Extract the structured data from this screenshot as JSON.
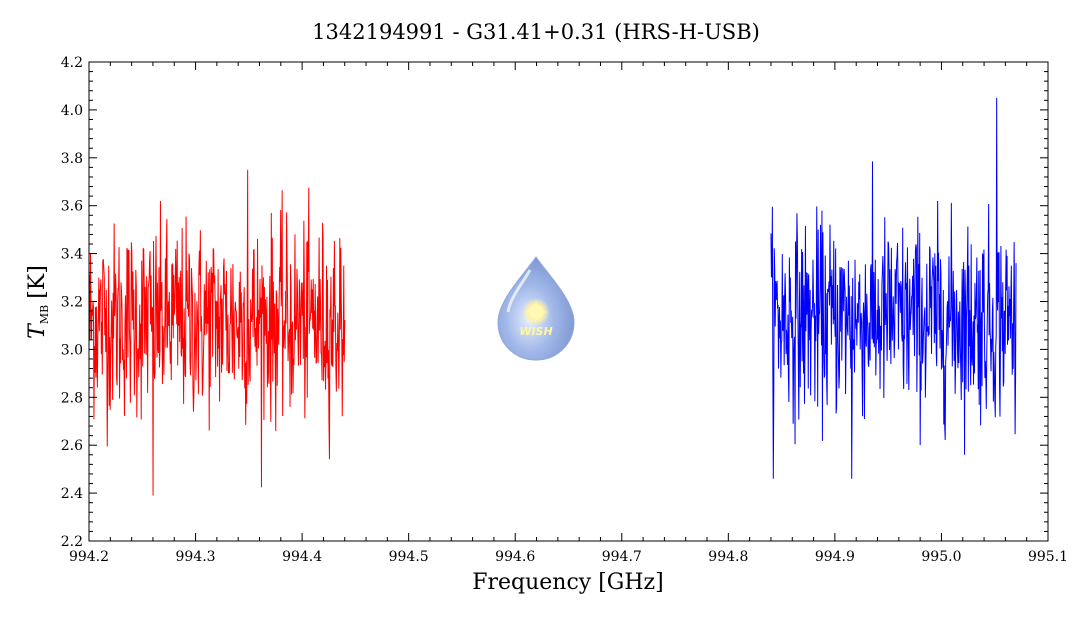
{
  "chart_data": {
    "type": "line",
    "title": "1342194991 - G31.41+0.31 (HRS-H-USB)",
    "xlabel": "Frequency [GHz]",
    "ylabel_main": "T",
    "ylabel_sub": "MB",
    "ylabel_unit": "[K]",
    "xlim": [
      994.2,
      995.1
    ],
    "ylim": [
      2.2,
      4.2
    ],
    "xticks": [
      "994.2",
      "994.3",
      "994.4",
      "994.5",
      "994.6",
      "994.7",
      "994.8",
      "994.9",
      "995.0",
      "995.1"
    ],
    "yticks": [
      "2.2",
      "2.4",
      "2.6",
      "2.8",
      "3.0",
      "3.2",
      "3.4",
      "3.6",
      "3.8",
      "4.0",
      "4.2"
    ],
    "grid": false,
    "series": [
      {
        "color": "#ff0000",
        "x_start": 994.2,
        "x_end": 994.44,
        "mean": 3.12,
        "noise_sigma": 0.2,
        "y_min": 2.39,
        "y_max": 3.75,
        "n_points": 520
      },
      {
        "color": "#0000ff",
        "x_start": 994.84,
        "x_end": 995.07,
        "mean": 3.13,
        "noise_sigma": 0.2,
        "y_min": 2.46,
        "y_max": 4.05,
        "n_points": 520
      }
    ],
    "logo_text": "WISH"
  }
}
